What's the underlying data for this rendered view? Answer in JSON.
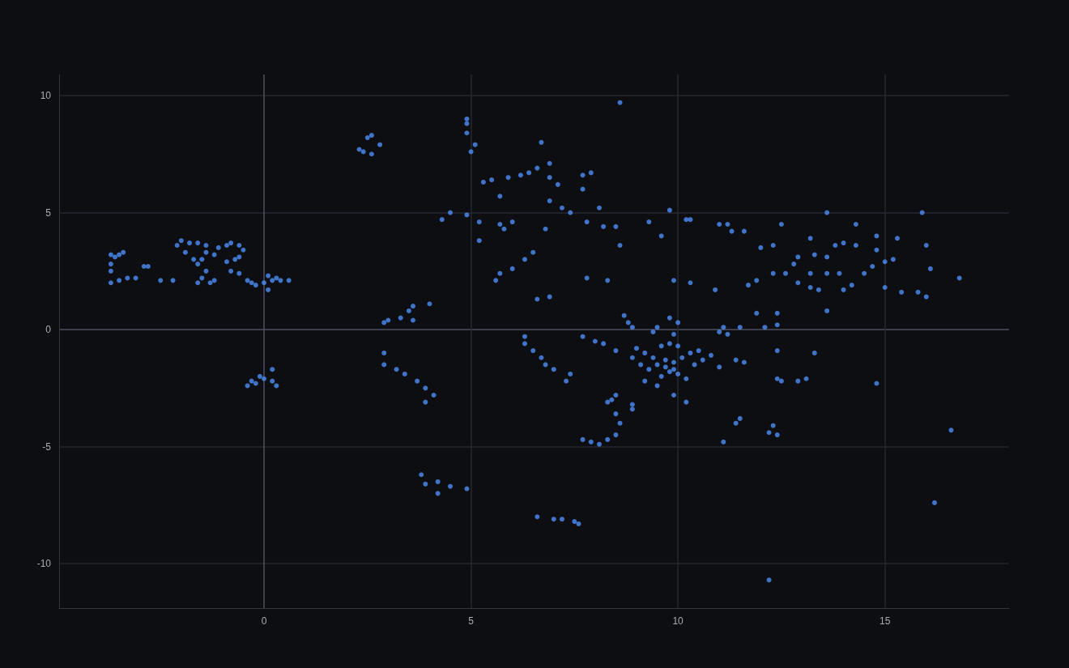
{
  "chart_data": {
    "type": "scatter",
    "color": "#4d8ff7",
    "marker": "circle",
    "x": [
      -3.7,
      -3.6,
      -3.5,
      -3.4,
      -3.7,
      -3.7,
      -3.7,
      -3.5,
      -3.3,
      -3.1,
      -2.9,
      -2.8,
      -2.5,
      -2.2,
      -2.1,
      -2.0,
      -1.8,
      -1.6,
      -1.4,
      -1.9,
      -1.7,
      -1.5,
      -1.6,
      -1.4,
      -1.5,
      -1.6,
      -1.3,
      -1.2,
      -1.4,
      -1.2,
      -1.1,
      -0.9,
      -0.8,
      -0.6,
      -0.5,
      -0.9,
      -0.7,
      -0.6,
      -0.8,
      -0.4,
      -0.3,
      -0.2,
      -0.6,
      0.0,
      0.2,
      0.4,
      0.6,
      0.1,
      0.3,
      0.1,
      -0.4,
      -0.2,
      0.0,
      0.2,
      0.3,
      0.2,
      -0.1,
      -0.3,
      2.3,
      2.4,
      2.6,
      2.5,
      2.6,
      2.8,
      2.9,
      3.0,
      3.3,
      3.6,
      3.6,
      3.5,
      4.0,
      4.9,
      4.9,
      4.9,
      5.0,
      5.1,
      6.7,
      8.6,
      5.3,
      5.5,
      5.9,
      6.2,
      6.4,
      6.6,
      6.9,
      6.9,
      7.1,
      5.7,
      7.7,
      7.9,
      7.7,
      7.2,
      7.4,
      6.9,
      8.1,
      7.8,
      8.2,
      8.5,
      4.5,
      4.3,
      4.9,
      5.2,
      5.7,
      5.8,
      5.2,
      6.0,
      6.8,
      6.5,
      6.3,
      5.7,
      5.6,
      6.0,
      6.6,
      6.9,
      7.8,
      8.3,
      8.6,
      9.8,
      10.3,
      9.6,
      9.9,
      10.3,
      9.3,
      8.7,
      8.8,
      8.9,
      9.5,
      9.8,
      13.6,
      15.9,
      10.2,
      11.0,
      11.2,
      11.3,
      11.6,
      12.5,
      14.3,
      12.0,
      12.3,
      13.2,
      12.9,
      12.8,
      13.6,
      13.3,
      14.0,
      14.3,
      14.8,
      15.3,
      14.8,
      15.0,
      16.0,
      16.1,
      16.8,
      12.6,
      12.3,
      11.9,
      11.7,
      13.2,
      13.6,
      13.9,
      12.9,
      13.2,
      13.4,
      14.0,
      14.2,
      14.5,
      14.7,
      15.0,
      15.4,
      15.8,
      16.0,
      13.6,
      10.9,
      12.4,
      12.4,
      12.1,
      11.9,
      11.2,
      11.1,
      11.5,
      13.8,
      15.2,
      11.0,
      2.9,
      3.2,
      3.4,
      2.9,
      3.7,
      3.9,
      4.1,
      3.9,
      6.3,
      6.3,
      6.5,
      6.7,
      6.8,
      7.0,
      7.3,
      7.4,
      7.7,
      8.0,
      8.2,
      8.5,
      3.8,
      3.9,
      4.2,
      4.2,
      4.5,
      4.9,
      6.6,
      7.0,
      7.2,
      7.5,
      7.6,
      8.5,
      8.4,
      8.3,
      8.5,
      8.6,
      8.5,
      8.3,
      8.1,
      7.7,
      7.9,
      8.9,
      8.9,
      10.2,
      9.9,
      9.0,
      9.2,
      9.4,
      9.6,
      9.8,
      10.0,
      9.5,
      9.7,
      9.9,
      10.1,
      10.3,
      9.3,
      9.6,
      9.8,
      10.0,
      10.4,
      10.6,
      9.1,
      8.9,
      9.2,
      9.5,
      10.2,
      10.5,
      10.8,
      9.9,
      9.4,
      10.0,
      9.7,
      9.9,
      12.4,
      13.3,
      11.0,
      11.4,
      11.6,
      12.4,
      12.5,
      12.9,
      13.1,
      14.8,
      11.1,
      11.4,
      11.5,
      12.3,
      12.4,
      12.2,
      16.6,
      16.2,
      12.2
    ],
    "values": [
      3.2,
      3.1,
      3.2,
      3.3,
      2.8,
      2.5,
      2.0,
      2.1,
      2.2,
      2.2,
      2.7,
      2.7,
      2.1,
      2.1,
      3.6,
      3.8,
      3.7,
      3.7,
      3.6,
      3.3,
      3.0,
      3.0,
      2.8,
      2.5,
      2.2,
      2.0,
      2.0,
      2.1,
      3.3,
      3.2,
      3.5,
      3.6,
      3.7,
      3.6,
      3.4,
      2.9,
      3.0,
      3.1,
      2.5,
      2.1,
      2.0,
      1.9,
      2.4,
      2.0,
      2.1,
      2.1,
      2.1,
      2.3,
      2.2,
      1.7,
      -2.4,
      -2.3,
      -2.1,
      -2.2,
      -2.4,
      -1.7,
      -2.0,
      -2.2,
      7.7,
      7.6,
      7.5,
      8.2,
      8.3,
      7.9,
      0.3,
      0.4,
      0.5,
      0.4,
      1.0,
      0.8,
      1.1,
      9.0,
      8.8,
      8.4,
      7.6,
      7.9,
      8.0,
      9.7,
      6.3,
      6.4,
      6.5,
      6.6,
      6.7,
      6.9,
      7.1,
      6.5,
      6.2,
      5.7,
      6.6,
      6.7,
      6.0,
      5.2,
      5.0,
      5.5,
      5.2,
      4.6,
      4.4,
      4.4,
      5.0,
      4.7,
      4.9,
      4.6,
      4.5,
      4.3,
      3.8,
      4.6,
      4.3,
      3.3,
      3.0,
      2.4,
      2.1,
      2.6,
      1.3,
      1.4,
      2.2,
      2.1,
      3.6,
      5.1,
      4.7,
      4.0,
      2.1,
      2.0,
      4.6,
      0.6,
      0.3,
      0.1,
      0.1,
      0.5,
      5.0,
      5.0,
      4.7,
      4.5,
      4.5,
      4.2,
      4.2,
      4.5,
      4.5,
      3.5,
      3.6,
      3.9,
      3.1,
      2.8,
      3.1,
      3.2,
      3.7,
      3.6,
      4.0,
      3.9,
      3.4,
      2.9,
      3.6,
      2.6,
      2.2,
      2.4,
      2.4,
      2.1,
      1.9,
      2.4,
      2.4,
      2.4,
      2.0,
      1.8,
      1.7,
      1.7,
      1.9,
      2.4,
      2.7,
      1.8,
      1.6,
      1.6,
      1.4,
      0.8,
      1.7,
      0.7,
      0.2,
      0.1,
      0.7,
      -0.2,
      0.1,
      0.1,
      3.6,
      3.0,
      -0.1,
      -1.5,
      -1.7,
      -1.9,
      -1.0,
      -2.2,
      -2.5,
      -2.8,
      -3.1,
      -0.3,
      -0.6,
      -0.9,
      -1.2,
      -1.5,
      -1.7,
      -2.2,
      -1.9,
      -0.3,
      -0.5,
      -0.6,
      -0.9,
      -6.2,
      -6.6,
      -6.5,
      -7.0,
      -6.7,
      -6.8,
      -8.0,
      -8.1,
      -8.1,
      -8.2,
      -8.3,
      -2.8,
      -3.0,
      -3.1,
      -3.6,
      -4.0,
      -4.5,
      -4.7,
      -4.9,
      -4.7,
      -4.8,
      -3.2,
      -3.4,
      -3.1,
      -2.8,
      -0.8,
      -1.0,
      -1.2,
      -0.7,
      -0.6,
      -0.7,
      -1.5,
      -1.6,
      -1.4,
      -1.2,
      -1.0,
      -1.7,
      -2.0,
      -1.8,
      -1.9,
      -1.5,
      -1.3,
      -1.5,
      -1.2,
      -2.2,
      -2.4,
      -2.1,
      -0.9,
      -1.1,
      -0.2,
      -0.1,
      0.3,
      -1.3,
      -1.7,
      -0.9,
      -1.0,
      -1.6,
      -1.3,
      -1.4,
      -2.1,
      -2.2,
      -2.2,
      -2.1,
      -2.3,
      -4.8,
      -4.0,
      -3.8,
      -4.1,
      -4.5,
      -4.4,
      -4.3,
      -7.4,
      -10.7
    ],
    "xlim": [
      -4.95,
      18.0
    ],
    "ylim": [
      -11.9,
      10.9
    ],
    "xticks": [
      0,
      5,
      10,
      15
    ],
    "yticks": [
      -10,
      -5,
      0,
      5,
      10
    ],
    "grid": true
  }
}
